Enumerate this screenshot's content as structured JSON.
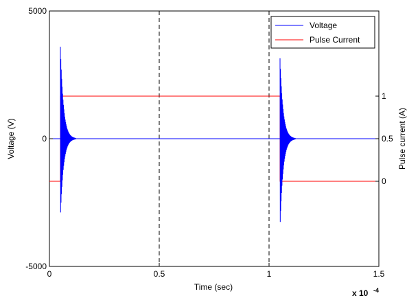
{
  "chart_data": {
    "type": "line",
    "title": "",
    "xlabel": "Time (sec)",
    "ylabel_left": "Voltage (V)",
    "ylabel_right": "Pulse current (A)",
    "x_multiplier_label": "x 10",
    "x_multiplier_exponent": "-4",
    "xlim": [
      0,
      1.5
    ],
    "ylim_left": [
      -5000,
      5000
    ],
    "ylim_right": [
      -1,
      2
    ],
    "x_ticks": [
      "0",
      "0.5",
      "1",
      "1.5"
    ],
    "x_tick_values": [
      0,
      0.5,
      1,
      1.5
    ],
    "y_ticks_left": [
      "-5000",
      "0",
      "5000"
    ],
    "y_tick_values_left": [
      -5000,
      0,
      5000
    ],
    "y_ticks_right": [
      "0",
      "0.5",
      "1"
    ],
    "y_tick_values_right": [
      0,
      0.5,
      1
    ],
    "vertical_dashed_lines_x": [
      0.5,
      1.0
    ],
    "horizontal_dashed_line_y": 0,
    "legend": {
      "placement": "top-right",
      "entries": [
        "Voltage",
        "Pulse Current"
      ]
    },
    "series": [
      {
        "name": "Voltage",
        "axis": "left",
        "color": "#0000ff",
        "transients": [
          {
            "x_start": 0.05,
            "max": 3600,
            "min": -3100,
            "decay_end": 0.12
          },
          {
            "x_start": 1.05,
            "max": 3150,
            "min": -3500,
            "decay_end": 1.12
          }
        ],
        "baseline": 0
      },
      {
        "name": "Pulse Current",
        "axis": "right",
        "color": "#ff0000",
        "points": [
          {
            "x": 0,
            "y": 0
          },
          {
            "x": 0.05,
            "y": 0
          },
          {
            "x": 0.05,
            "y": 1
          },
          {
            "x": 1.05,
            "y": 1
          },
          {
            "x": 1.05,
            "y": 0
          },
          {
            "x": 1.5,
            "y": 0
          }
        ]
      }
    ]
  }
}
